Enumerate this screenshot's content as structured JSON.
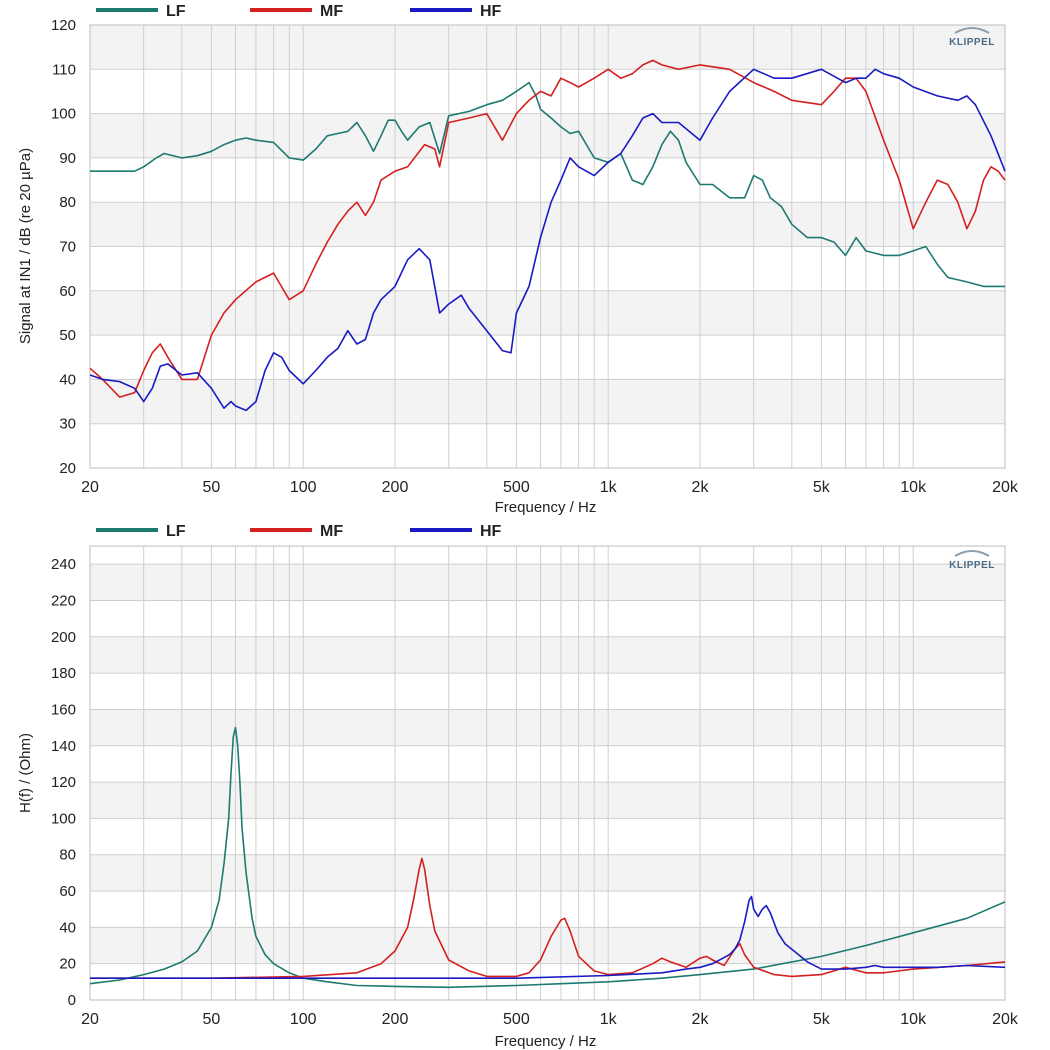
{
  "brand": "KLIPPEL",
  "colors": {
    "LF": "#1e7a70",
    "MF": "#d42020",
    "HF": "#1a1ac4",
    "band": "#f3f3f3",
    "grid": "#cfcfcf"
  },
  "chart_data": [
    {
      "type": "line",
      "title": "",
      "xlabel": "Frequency / Hz",
      "ylabel": "Signal at IN1 / dB (re 20 µPa)",
      "xscale": "log",
      "xlim": [
        20,
        20000
      ],
      "ylim": [
        20,
        120
      ],
      "xticks": [
        20,
        50,
        100,
        200,
        500,
        1000,
        2000,
        5000,
        10000,
        20000
      ],
      "xtick_labels": [
        "20",
        "50",
        "100",
        "200",
        "500",
        "1k",
        "2k",
        "5k",
        "10k",
        "20k"
      ],
      "yticks": [
        20,
        30,
        40,
        50,
        60,
        70,
        80,
        90,
        100,
        110,
        120
      ],
      "ytick_labels": [
        "20",
        "30",
        "40",
        "50",
        "60",
        "70",
        "80",
        "90",
        "100",
        "110",
        "120"
      ],
      "legend": "top",
      "grid": true,
      "series": [
        {
          "name": "LF",
          "x": [
            20,
            25,
            28,
            30,
            33,
            35,
            40,
            45,
            50,
            55,
            60,
            65,
            70,
            80,
            90,
            100,
            110,
            120,
            130,
            140,
            150,
            160,
            170,
            180,
            190,
            200,
            210,
            220,
            240,
            260,
            280,
            300,
            350,
            400,
            450,
            500,
            550,
            580,
            600,
            650,
            700,
            750,
            800,
            900,
            1000,
            1100,
            1200,
            1300,
            1400,
            1500,
            1600,
            1700,
            1800,
            2000,
            2200,
            2500,
            2800,
            3000,
            3200,
            3400,
            3700,
            4000,
            4500,
            5000,
            5500,
            6000,
            6500,
            7000,
            8000,
            9000,
            10000,
            11000,
            12000,
            13000,
            15000,
            17000,
            20000
          ],
          "y": [
            87,
            87,
            87,
            88,
            90,
            91,
            90,
            90.5,
            91.5,
            93,
            94,
            94.5,
            94,
            93.5,
            90,
            89.5,
            92,
            95,
            95.5,
            96,
            98,
            95,
            91.5,
            95,
            98.5,
            98.5,
            96,
            94,
            97,
            98,
            91,
            99.5,
            100.5,
            102,
            103,
            105,
            107,
            104,
            101,
            99,
            97,
            95.5,
            96,
            90,
            89,
            91,
            85,
            84,
            88,
            93,
            96,
            94,
            89,
            84,
            84,
            81,
            81,
            86,
            85,
            81,
            79,
            75,
            72,
            72,
            71,
            68,
            72,
            69,
            68,
            68,
            69,
            70,
            66,
            63,
            62,
            61,
            61
          ]
        },
        {
          "name": "MF",
          "x": [
            20,
            22,
            25,
            28,
            30,
            32,
            34,
            36,
            40,
            45,
            50,
            55,
            60,
            70,
            80,
            90,
            100,
            110,
            120,
            130,
            140,
            150,
            160,
            170,
            180,
            200,
            220,
            250,
            270,
            280,
            300,
            350,
            400,
            450,
            500,
            550,
            600,
            650,
            700,
            750,
            800,
            900,
            1000,
            1100,
            1200,
            1300,
            1400,
            1500,
            1700,
            2000,
            2500,
            3000,
            3500,
            4000,
            5000,
            5500,
            6000,
            6500,
            7000,
            8000,
            9000,
            10000,
            11000,
            12000,
            13000,
            14000,
            15000,
            16000,
            17000,
            18000,
            19000,
            20000
          ],
          "y": [
            42.5,
            40,
            36,
            37,
            42,
            46,
            48,
            45,
            40,
            40,
            50,
            55,
            58,
            62,
            64,
            58,
            60,
            66,
            71,
            75,
            78,
            80,
            77,
            80,
            85,
            87,
            88,
            93,
            92,
            88,
            98,
            99,
            100,
            94,
            100,
            103,
            105,
            104,
            108,
            107,
            106,
            108,
            110,
            108,
            109,
            111,
            112,
            111,
            110,
            111,
            110,
            107,
            105,
            103,
            102,
            105,
            108,
            108,
            105,
            94,
            85,
            74,
            80,
            85,
            84,
            80,
            74,
            78,
            85,
            88,
            87,
            85
          ]
        },
        {
          "name": "HF",
          "x": [
            20,
            22,
            25,
            28,
            30,
            32,
            34,
            36,
            40,
            45,
            50,
            55,
            58,
            60,
            65,
            70,
            75,
            80,
            85,
            90,
            100,
            110,
            120,
            130,
            140,
            150,
            160,
            170,
            180,
            200,
            220,
            240,
            260,
            280,
            300,
            330,
            350,
            400,
            450,
            480,
            500,
            550,
            600,
            650,
            700,
            750,
            800,
            900,
            1000,
            1100,
            1200,
            1300,
            1400,
            1500,
            1700,
            2000,
            2200,
            2500,
            3000,
            3500,
            4000,
            5000,
            6000,
            6500,
            7000,
            7500,
            8000,
            9000,
            10000,
            12000,
            14000,
            15000,
            16000,
            18000,
            20000
          ],
          "y": [
            41,
            40,
            39.5,
            38,
            35,
            38,
            43,
            43.5,
            41,
            41.5,
            38,
            33.5,
            35,
            34,
            33,
            35,
            42,
            46,
            45,
            42,
            39,
            42,
            45,
            47,
            51,
            48,
            49,
            55,
            58,
            61,
            67,
            69.5,
            67,
            55,
            57,
            59,
            56,
            51,
            46.5,
            46,
            55,
            61,
            72,
            80,
            85,
            90,
            88,
            86,
            89,
            91,
            95,
            99,
            100,
            98,
            98,
            94,
            99,
            105,
            110,
            108,
            108,
            110,
            107,
            108,
            108,
            110,
            109,
            108,
            106,
            104,
            103,
            104,
            102,
            95,
            87
          ]
        }
      ]
    },
    {
      "type": "line",
      "title": "",
      "xlabel": "Frequency / Hz",
      "ylabel": "H(f) / (Ohm)",
      "xscale": "log",
      "xlim": [
        20,
        20000
      ],
      "ylim": [
        0,
        250
      ],
      "xticks": [
        20,
        50,
        100,
        200,
        500,
        1000,
        2000,
        5000,
        10000,
        20000
      ],
      "xtick_labels": [
        "20",
        "50",
        "100",
        "200",
        "500",
        "1k",
        "2k",
        "5k",
        "10k",
        "20k"
      ],
      "yticks": [
        0,
        20,
        40,
        60,
        80,
        100,
        120,
        140,
        160,
        180,
        200,
        220,
        240
      ],
      "ytick_labels": [
        "0",
        "20",
        "40",
        "60",
        "80",
        "100",
        "120",
        "140",
        "160",
        "180",
        "200",
        "220",
        "240"
      ],
      "legend": "top",
      "grid": true,
      "series": [
        {
          "name": "LF",
          "x": [
            20,
            25,
            30,
            35,
            40,
            45,
            50,
            53,
            55,
            57,
            58,
            59,
            60,
            61,
            62,
            63,
            65,
            68,
            70,
            75,
            80,
            90,
            100,
            120,
            150,
            200,
            300,
            500,
            700,
            1000,
            1500,
            2000,
            3000,
            5000,
            7000,
            10000,
            15000,
            20000
          ],
          "y": [
            9,
            11,
            14,
            17,
            21,
            27,
            40,
            55,
            75,
            100,
            125,
            145,
            150,
            140,
            120,
            95,
            70,
            45,
            35,
            25,
            20,
            15,
            12,
            10,
            8,
            7.5,
            7,
            8,
            9,
            10,
            12,
            14,
            17,
            24,
            30,
            37,
            45,
            54
          ]
        },
        {
          "name": "MF",
          "x": [
            20,
            50,
            100,
            150,
            180,
            200,
            220,
            230,
            240,
            245,
            250,
            260,
            270,
            300,
            350,
            400,
            500,
            550,
            600,
            650,
            700,
            720,
            750,
            800,
            900,
            1000,
            1200,
            1400,
            1500,
            1600,
            1800,
            2000,
            2100,
            2200,
            2400,
            2600,
            2700,
            2800,
            3000,
            3500,
            4000,
            5000,
            6000,
            7000,
            8000,
            10000,
            15000,
            20000
          ],
          "y": [
            12,
            12,
            13,
            15,
            20,
            27,
            40,
            55,
            72,
            78,
            72,
            52,
            38,
            22,
            16,
            13,
            13,
            15,
            22,
            35,
            44,
            45,
            38,
            24,
            16,
            14,
            15,
            20,
            23,
            21,
            18,
            23,
            24,
            22,
            19,
            28,
            31,
            25,
            18,
            14,
            13,
            14,
            18,
            15,
            15,
            17,
            19,
            21
          ]
        },
        {
          "name": "HF",
          "x": [
            20,
            50,
            100,
            200,
            500,
            1000,
            1500,
            1800,
            2000,
            2200,
            2500,
            2600,
            2700,
            2800,
            2900,
            2950,
            3000,
            3100,
            3200,
            3300,
            3400,
            3600,
            3800,
            4000,
            4500,
            5000,
            6000,
            7000,
            7500,
            8000,
            10000,
            12000,
            15000,
            20000
          ],
          "y": [
            12,
            12,
            12,
            12,
            12,
            13.5,
            15,
            17,
            18,
            20,
            25,
            28,
            33,
            43,
            55,
            57,
            50,
            46,
            50,
            52,
            48,
            37,
            31,
            28,
            21,
            17,
            17,
            18,
            19,
            18,
            18,
            18,
            19,
            18
          ]
        }
      ]
    }
  ]
}
